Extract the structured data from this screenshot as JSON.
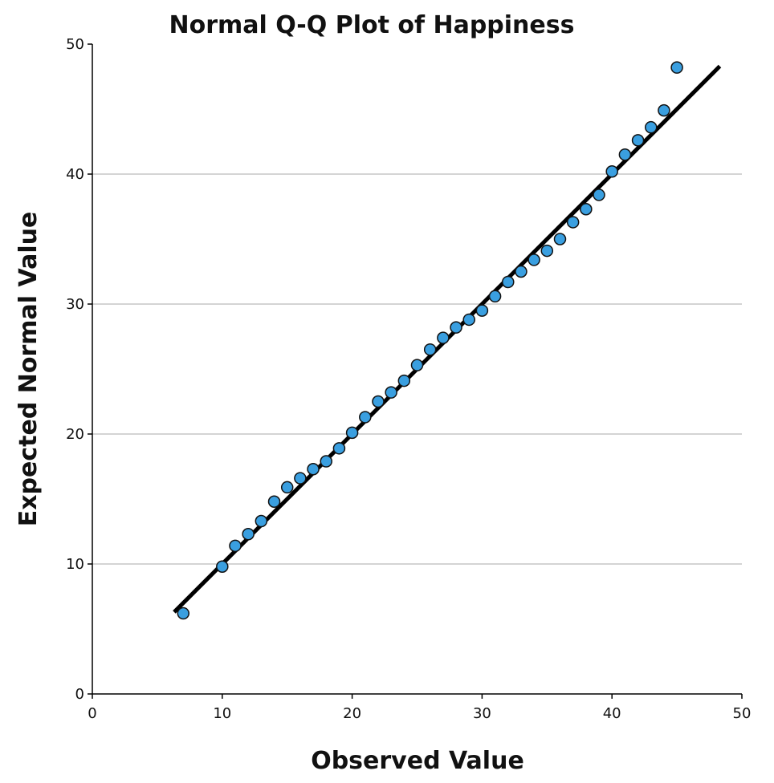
{
  "chart_data": {
    "type": "scatter",
    "title": "Normal Q-Q Plot of Happiness",
    "xlabel": "Observed Value",
    "ylabel": "Expected Normal Value",
    "xlim": [
      0,
      50
    ],
    "ylim": [
      0,
      50
    ],
    "xticks": [
      0,
      10,
      20,
      30,
      40,
      50
    ],
    "yticks": [
      0,
      10,
      20,
      30,
      40,
      50
    ],
    "grid": "horizontal",
    "point_color": "#3a9fe0",
    "line_color": "#000000",
    "reference_line": {
      "x": [
        6.3,
        48.3
      ],
      "y": [
        6.3,
        48.3
      ]
    },
    "points": [
      {
        "x": 7,
        "y": 6.2
      },
      {
        "x": 10,
        "y": 9.8
      },
      {
        "x": 11,
        "y": 11.4
      },
      {
        "x": 12,
        "y": 12.3
      },
      {
        "x": 13,
        "y": 13.3
      },
      {
        "x": 14,
        "y": 14.8
      },
      {
        "x": 15,
        "y": 15.9
      },
      {
        "x": 16,
        "y": 16.6
      },
      {
        "x": 17,
        "y": 17.3
      },
      {
        "x": 18,
        "y": 17.9
      },
      {
        "x": 19,
        "y": 18.9
      },
      {
        "x": 20,
        "y": 20.1
      },
      {
        "x": 21,
        "y": 21.3
      },
      {
        "x": 22,
        "y": 22.5
      },
      {
        "x": 23,
        "y": 23.2
      },
      {
        "x": 24,
        "y": 24.1
      },
      {
        "x": 25,
        "y": 25.3
      },
      {
        "x": 26,
        "y": 26.5
      },
      {
        "x": 27,
        "y": 27.4
      },
      {
        "x": 28,
        "y": 28.2
      },
      {
        "x": 29,
        "y": 28.8
      },
      {
        "x": 30,
        "y": 29.5
      },
      {
        "x": 31,
        "y": 30.6
      },
      {
        "x": 32,
        "y": 31.7
      },
      {
        "x": 33,
        "y": 32.5
      },
      {
        "x": 34,
        "y": 33.4
      },
      {
        "x": 35,
        "y": 34.1
      },
      {
        "x": 36,
        "y": 35.0
      },
      {
        "x": 37,
        "y": 36.3
      },
      {
        "x": 38,
        "y": 37.3
      },
      {
        "x": 39,
        "y": 38.4
      },
      {
        "x": 40,
        "y": 40.2
      },
      {
        "x": 41,
        "y": 41.5
      },
      {
        "x": 42,
        "y": 42.6
      },
      {
        "x": 43,
        "y": 43.6
      },
      {
        "x": 44,
        "y": 44.9
      },
      {
        "x": 45,
        "y": 48.2
      }
    ]
  }
}
